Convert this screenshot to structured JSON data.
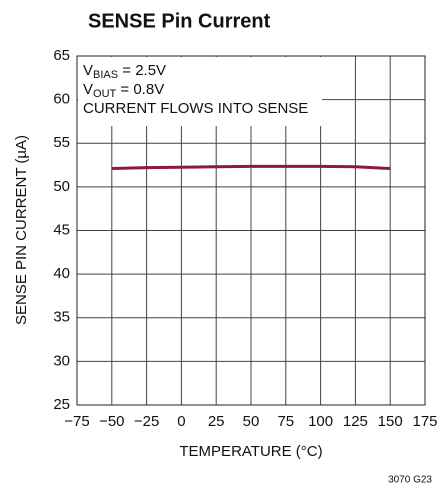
{
  "chart_data": {
    "type": "line",
    "title": "SENSE Pin Current",
    "xlabel": "TEMPERATURE (°C)",
    "ylabel": "SENSE PIN CURRENT (µA)",
    "annotations": [
      [
        "V",
        "BIAS",
        " = 2.5V"
      ],
      [
        "V",
        "OUT",
        " = 0.8V"
      ],
      [
        "CURRENT FLOWS INTO SENSE"
      ]
    ],
    "footnote": "3070 G23",
    "x": [
      -50,
      -25,
      0,
      25,
      50,
      75,
      100,
      125,
      150
    ],
    "series": [
      {
        "name": "SENSE",
        "color": "#8c1a3c",
        "values": [
          52.1,
          52.2,
          52.25,
          52.3,
          52.35,
          52.35,
          52.35,
          52.3,
          52.1
        ]
      }
    ],
    "xlim": [
      -75,
      175
    ],
    "xticks": [
      {
        "value": -75,
        "label": "−75"
      },
      {
        "value": -50,
        "label": "−50"
      },
      {
        "value": -25,
        "label": "−25"
      },
      0,
      25,
      50,
      75,
      100,
      125,
      150,
      175
    ],
    "ylim": [
      25,
      65
    ],
    "yticks": [
      25,
      30,
      35,
      40,
      45,
      50,
      55,
      60,
      65
    ],
    "grid": true
  }
}
